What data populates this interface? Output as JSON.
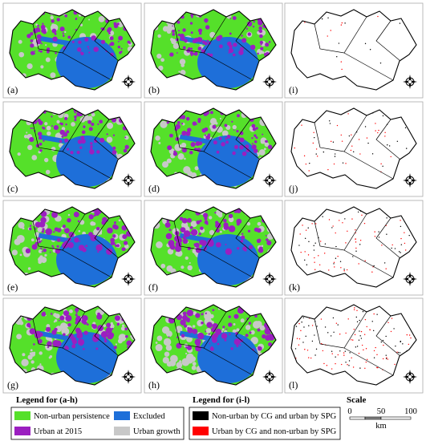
{
  "panels": [
    [
      "(a)",
      "(b)",
      "(i)"
    ],
    [
      "(c)",
      "(d)",
      "(j)"
    ],
    [
      "(e)",
      "(f)",
      "(k)"
    ],
    [
      "(g)",
      "(h)",
      "(l)"
    ]
  ],
  "legend_a_h": {
    "title": "Legend for (a-h)",
    "items": [
      "Non-urban persistence",
      "Excluded",
      "Urban at 2015",
      "Urban growth"
    ]
  },
  "legend_i_l": {
    "title": "Legend for (i-l)",
    "items": [
      "Non-urban by CG and urban by SPG",
      "Urban by CG and non-urban by SPG"
    ]
  },
  "scale": {
    "title": "Scale",
    "labels": [
      "0",
      "50",
      "100"
    ],
    "unit": "km"
  }
}
